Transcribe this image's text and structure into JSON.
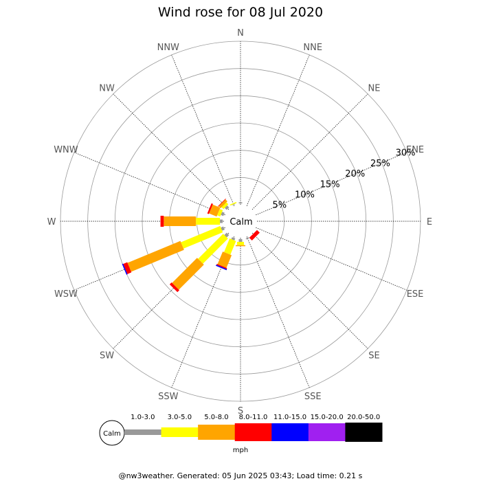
{
  "chart_data": {
    "type": "windrose",
    "title": "Wind rose for 08 Jul 2020",
    "directions": [
      "N",
      "NNE",
      "NE",
      "ENE",
      "E",
      "ESE",
      "SE",
      "SSE",
      "S",
      "SSW",
      "SW",
      "WSW",
      "W",
      "WNW",
      "NW",
      "NNW"
    ],
    "radial_ticks": [
      "5%",
      "10%",
      "15%",
      "20%",
      "25%",
      "30%"
    ],
    "radial_values": [
      5,
      10,
      15,
      20,
      25,
      30
    ],
    "radial_max": 30,
    "calm_label": "Calm",
    "units": "mph",
    "bins": [
      {
        "label": "1.0-3.0",
        "color": "#999999"
      },
      {
        "label": "3.0-5.0",
        "color": "#ffff00"
      },
      {
        "label": "5.0-8.0",
        "color": "#ffa500"
      },
      {
        "label": "8.0-11.0",
        "color": "#ff0000"
      },
      {
        "label": "11.0-15.0",
        "color": "#0000ff"
      },
      {
        "label": "15.0-20.0",
        "color": "#a020f0"
      },
      {
        "label": "20.0-50.0",
        "color": "#000000"
      }
    ],
    "series": [
      {
        "direction": "N",
        "values": [
          0.2,
          0.0,
          0.0,
          0.0,
          0.0,
          0.0,
          0.0
        ]
      },
      {
        "direction": "NNE",
        "values": [
          0.0,
          0.0,
          0.0,
          0.0,
          0.0,
          0.0,
          0.0
        ]
      },
      {
        "direction": "NE",
        "values": [
          0.0,
          0.0,
          0.0,
          0.0,
          0.0,
          0.0,
          0.0
        ]
      },
      {
        "direction": "ENE",
        "values": [
          0.0,
          0.0,
          0.0,
          0.0,
          0.0,
          0.0,
          0.0
        ]
      },
      {
        "direction": "E",
        "values": [
          0.0,
          0.0,
          0.0,
          0.0,
          0.0,
          0.0,
          0.0
        ]
      },
      {
        "direction": "ESE",
        "values": [
          0.0,
          0.0,
          0.0,
          0.0,
          0.0,
          0.0,
          0.0
        ]
      },
      {
        "direction": "SE",
        "values": [
          0.0,
          0.0,
          0.0,
          0.7,
          0.0,
          0.0,
          0.0
        ]
      },
      {
        "direction": "SSE",
        "values": [
          0.2,
          0.0,
          0.0,
          0.0,
          0.0,
          0.0,
          0.0
        ]
      },
      {
        "direction": "S",
        "values": [
          0.5,
          0.6,
          0.2,
          0.0,
          0.0,
          0.0,
          0.0
        ]
      },
      {
        "direction": "SSW",
        "values": [
          0.4,
          2.7,
          2.5,
          0.2,
          0.2,
          0.0,
          0.0
        ]
      },
      {
        "direction": "SW",
        "values": [
          0.6,
          6.5,
          6.5,
          0.5,
          0.0,
          0.0,
          0.0
        ]
      },
      {
        "direction": "WSW",
        "values": [
          0.5,
          7.8,
          10.5,
          0.8,
          0.2,
          0.0,
          0.0
        ]
      },
      {
        "direction": "W",
        "values": [
          0.5,
          4.4,
          5.9,
          0.6,
          0.0,
          0.0,
          0.0
        ]
      },
      {
        "direction": "WNW",
        "values": [
          0.5,
          0.6,
          1.5,
          0.3,
          0.0,
          0.0,
          0.0
        ]
      },
      {
        "direction": "NW",
        "values": [
          0.5,
          0.5,
          0.5,
          0.1,
          0.0,
          0.0,
          0.0
        ]
      },
      {
        "direction": "NNW",
        "values": [
          0.1,
          0.2,
          0.0,
          0.0,
          0.0,
          0.0,
          0.0
        ]
      }
    ]
  },
  "footer": "@nw3weather. Generated: 05 Jun 2025 03:43; Load time: 0.21 s"
}
